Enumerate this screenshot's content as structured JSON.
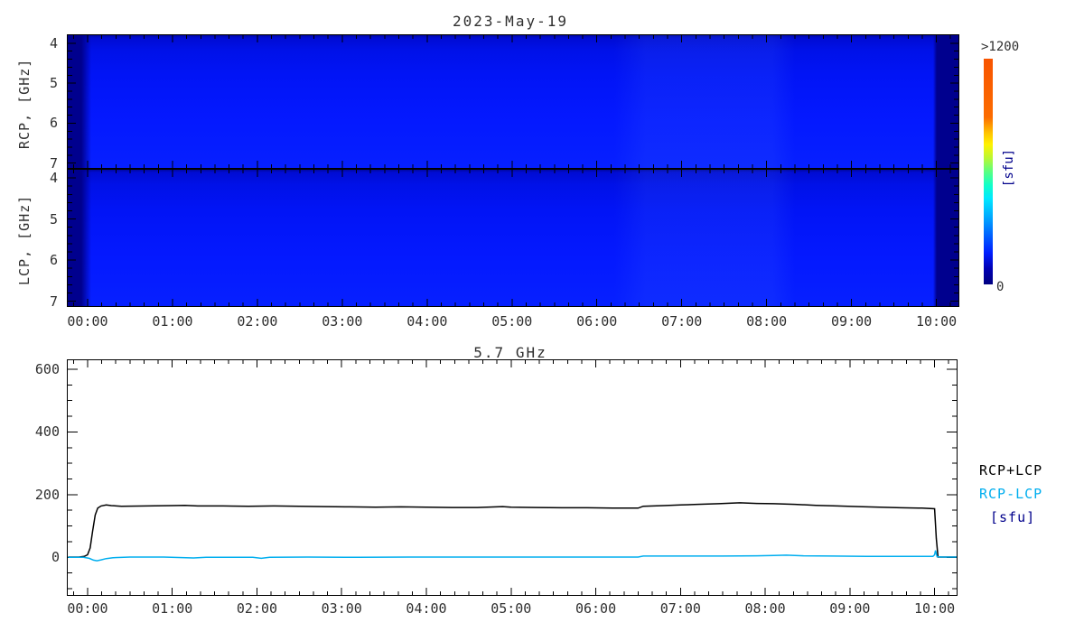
{
  "colors": {
    "background": "#ffffff",
    "axis": "#000000",
    "text": "#2f2f2f",
    "spectrogram_base": "#0318fa",
    "spectrogram_nodata": "#00008e",
    "line_total": "#000000",
    "line_diff": "#00aeef",
    "unit_label": "#00008b"
  },
  "header": {
    "title": "2023-May-19"
  },
  "spectrogram": {
    "panels": [
      {
        "name": "RCP",
        "ylabel": "RCP, [GHz]",
        "ytick_labels": [
          "4",
          "5",
          "6",
          "7"
        ]
      },
      {
        "name": "LCP",
        "ylabel": "LCP, [GHz]",
        "ytick_labels": [
          "4",
          "5",
          "6",
          "7"
        ]
      }
    ],
    "xtick_labels": [
      "00:00",
      "01:00",
      "02:00",
      "03:00",
      "04:00",
      "05:00",
      "06:00",
      "07:00",
      "08:00",
      "09:00",
      "10:00"
    ]
  },
  "colorbar": {
    "top_label": ">1200",
    "bottom_label": "0",
    "unit_label": "[sfu]"
  },
  "timeseries": {
    "title": "5.7 GHz",
    "ytick_labels": [
      "0",
      "200",
      "400",
      "600"
    ],
    "xtick_labels": [
      "00:00",
      "01:00",
      "02:00",
      "03:00",
      "04:00",
      "05:00",
      "06:00",
      "07:00",
      "08:00",
      "09:00",
      "10:00"
    ],
    "legend": [
      {
        "label": "RCP+LCP",
        "color": "#000000"
      },
      {
        "label": "RCP-LCP",
        "color": "#00aeef"
      },
      {
        "label": "[sfu]",
        "color": "#00008b"
      }
    ]
  },
  "chart_data": [
    {
      "type": "heatmap",
      "title": "2023-May-19",
      "panels": [
        "RCP",
        "LCP"
      ],
      "ylabels": [
        "RCP, [GHz]",
        "LCP, [GHz]"
      ],
      "y_ticks_ghz": [
        4,
        5,
        6,
        7
      ],
      "x_ticks": [
        "00:00",
        "01:00",
        "02:00",
        "03:00",
        "04:00",
        "05:00",
        "06:00",
        "07:00",
        "08:00",
        "09:00",
        "10:00"
      ],
      "value_scale": {
        "min": 0,
        "max": 1200,
        "min_label": "0",
        "max_label": ">1200",
        "unit": "[sfu]",
        "palette": "navy-blue-cyan-green-yellow-orange"
      },
      "summary": "Quiet low flux (deep blue, well below 200 sfu) across 4-7 GHz in both RCP and LCP from 00:00 to 10:00; dark navy no-data bands before 00:00 and after 10:00."
    },
    {
      "type": "line",
      "title": "5.7 GHz",
      "xlabel": "",
      "ylabel": "",
      "x_unit": "hours",
      "xlim": [
        -0.234,
        10.26
      ],
      "ylim": [
        -120,
        628.6
      ],
      "yticks": [
        0,
        200,
        400,
        600
      ],
      "xticks_hours": [
        0,
        1,
        2,
        3,
        4,
        5,
        6,
        7,
        8,
        9,
        10
      ],
      "legend_position": "right",
      "series": [
        {
          "name": "RCP+LCP",
          "color": "#000000",
          "points": [
            [
              -0.23,
              1
            ],
            [
              -0.1,
              1
            ],
            [
              -0.04,
              3
            ],
            [
              0.0,
              8
            ],
            [
              0.03,
              30
            ],
            [
              0.06,
              85
            ],
            [
              0.09,
              135
            ],
            [
              0.12,
              157
            ],
            [
              0.16,
              164
            ],
            [
              0.22,
              167
            ],
            [
              0.28,
              165
            ],
            [
              0.4,
              163
            ],
            [
              0.7,
              164
            ],
            [
              1.0,
              165
            ],
            [
              1.15,
              166
            ],
            [
              1.3,
              164
            ],
            [
              1.6,
              164
            ],
            [
              1.9,
              163
            ],
            [
              2.2,
              164
            ],
            [
              2.5,
              163
            ],
            [
              2.8,
              162
            ],
            [
              3.1,
              161
            ],
            [
              3.4,
              160
            ],
            [
              3.7,
              161
            ],
            [
              4.0,
              160
            ],
            [
              4.3,
              159
            ],
            [
              4.6,
              159
            ],
            [
              4.9,
              162
            ],
            [
              5.0,
              160
            ],
            [
              5.3,
              159
            ],
            [
              5.6,
              158
            ],
            [
              5.9,
              158
            ],
            [
              6.2,
              157
            ],
            [
              6.5,
              157
            ],
            [
              6.56,
              163
            ],
            [
              6.8,
              165
            ],
            [
              7.0,
              167
            ],
            [
              7.2,
              169
            ],
            [
              7.45,
              171
            ],
            [
              7.7,
              174
            ],
            [
              7.9,
              172
            ],
            [
              8.1,
              171
            ],
            [
              8.35,
              169
            ],
            [
              8.6,
              166
            ],
            [
              8.85,
              164
            ],
            [
              9.1,
              162
            ],
            [
              9.35,
              160
            ],
            [
              9.6,
              158
            ],
            [
              9.85,
              157
            ],
            [
              10.0,
              155
            ],
            [
              10.02,
              60
            ],
            [
              10.04,
              1
            ],
            [
              10.26,
              1
            ]
          ]
        },
        {
          "name": "RCP-LCP",
          "color": "#00aeef",
          "points": [
            [
              -0.23,
              0
            ],
            [
              -0.05,
              0
            ],
            [
              0.02,
              -3
            ],
            [
              0.07,
              -9
            ],
            [
              0.11,
              -11
            ],
            [
              0.16,
              -8
            ],
            [
              0.22,
              -4
            ],
            [
              0.3,
              -1
            ],
            [
              0.5,
              1
            ],
            [
              0.9,
              1
            ],
            [
              1.25,
              -2
            ],
            [
              1.4,
              0
            ],
            [
              1.95,
              0
            ],
            [
              2.05,
              -3
            ],
            [
              2.15,
              0
            ],
            [
              2.6,
              1
            ],
            [
              3.2,
              0
            ],
            [
              3.8,
              1
            ],
            [
              4.4,
              1
            ],
            [
              5.0,
              1
            ],
            [
              5.6,
              1
            ],
            [
              6.2,
              1
            ],
            [
              6.5,
              1
            ],
            [
              6.56,
              4
            ],
            [
              7.0,
              4
            ],
            [
              7.5,
              4
            ],
            [
              7.9,
              5
            ],
            [
              8.1,
              6
            ],
            [
              8.25,
              7
            ],
            [
              8.45,
              5
            ],
            [
              8.8,
              4
            ],
            [
              9.2,
              3
            ],
            [
              9.6,
              3
            ],
            [
              9.98,
              3
            ],
            [
              10.0,
              8
            ],
            [
              10.01,
              22
            ],
            [
              10.03,
              2
            ],
            [
              10.1,
              1
            ],
            [
              10.26,
              1
            ]
          ]
        }
      ]
    }
  ]
}
